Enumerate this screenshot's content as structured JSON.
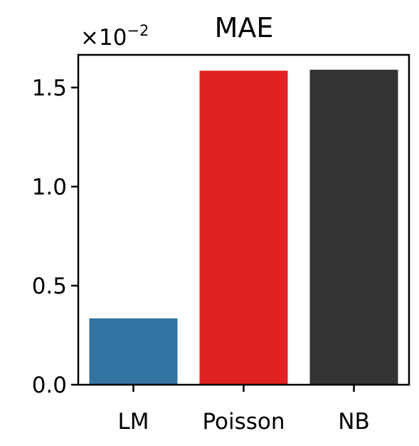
{
  "chart_data": {
    "type": "bar",
    "title": "MAE",
    "categories": [
      "LM",
      "Poisson",
      "NB"
    ],
    "values": [
      0.335,
      1.585,
      1.59
    ],
    "colors": [
      "#3274a1",
      "#e02222",
      "#333333"
    ],
    "y_offset_label": {
      "prefix": "×10",
      "exponent": "−2"
    },
    "yticks": [
      {
        "value": 0.0,
        "label": "0.0"
      },
      {
        "value": 0.5,
        "label": "0.5"
      },
      {
        "value": 1.0,
        "label": "1.0"
      },
      {
        "value": 1.5,
        "label": "1.5"
      }
    ],
    "ylim": [
      0,
      1.665
    ],
    "grid": false,
    "legend": "none"
  }
}
